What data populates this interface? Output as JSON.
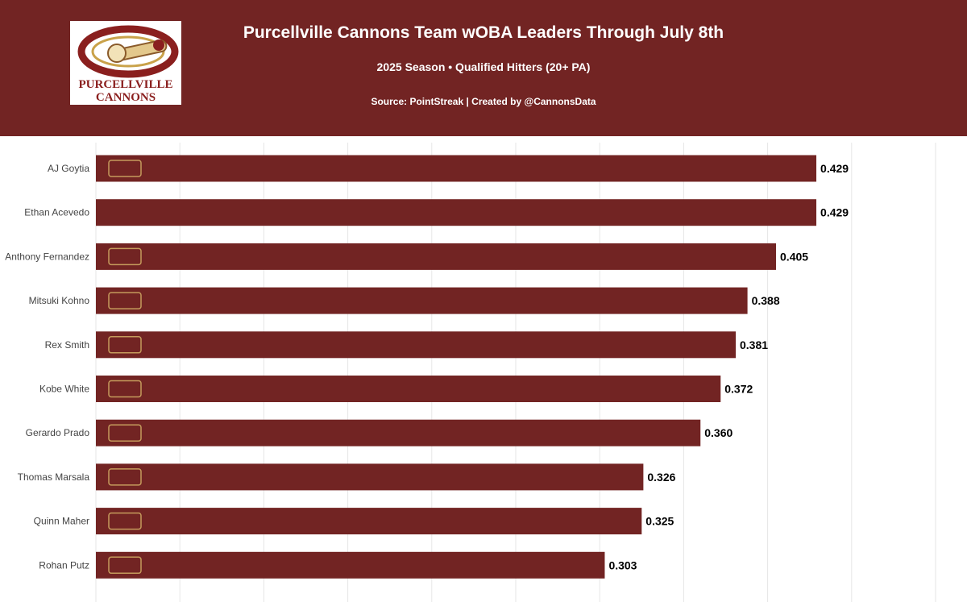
{
  "header": {
    "title": "Purcellville Cannons Team wOBA Leaders Through July 8th",
    "subtitle": "2025 Season • Qualified Hitters (20+ PA)",
    "source": "Source: PointStreak | Created by @CannonsData",
    "logo_line1": "PURCELLVILLE",
    "logo_line2": "CANNONS"
  },
  "colors": {
    "header_bg": "#722423",
    "bar": "#722423"
  },
  "chart_data": {
    "type": "bar",
    "orientation": "horizontal",
    "title": "Purcellville Cannons Team wOBA Leaders Through July 8th",
    "subtitle": "2025 Season • Qualified Hitters (20+ PA)",
    "xlabel": "",
    "ylabel": "",
    "xlim": [
      0,
      0.5
    ],
    "grid": true,
    "categories": [
      "AJ Goytia",
      "Ethan Acevedo",
      "Anthony Fernandez",
      "Mitsuki Kohno",
      "Rex Smith",
      "Kobe White",
      "Gerardo Prado",
      "Thomas Marsala",
      "Quinn Maher",
      "Rohan Putz"
    ],
    "values": [
      0.429,
      0.429,
      0.405,
      0.388,
      0.381,
      0.372,
      0.36,
      0.326,
      0.325,
      0.303
    ],
    "value_labels": [
      "0.429",
      "0.429",
      "0.405",
      "0.388",
      "0.381",
      "0.372",
      "0.360",
      "0.326",
      "0.325",
      "0.303"
    ],
    "team_logos": [
      "texas-tech-logo",
      "",
      "st-bonaventure-bonnies-logo",
      "johnson-university-logo",
      "vcu-logo",
      "louisiana-state-shreveport-logo",
      "oklahoma-logo",
      "wku-logo",
      "vcu-logo",
      "kansas-state-logo"
    ]
  }
}
